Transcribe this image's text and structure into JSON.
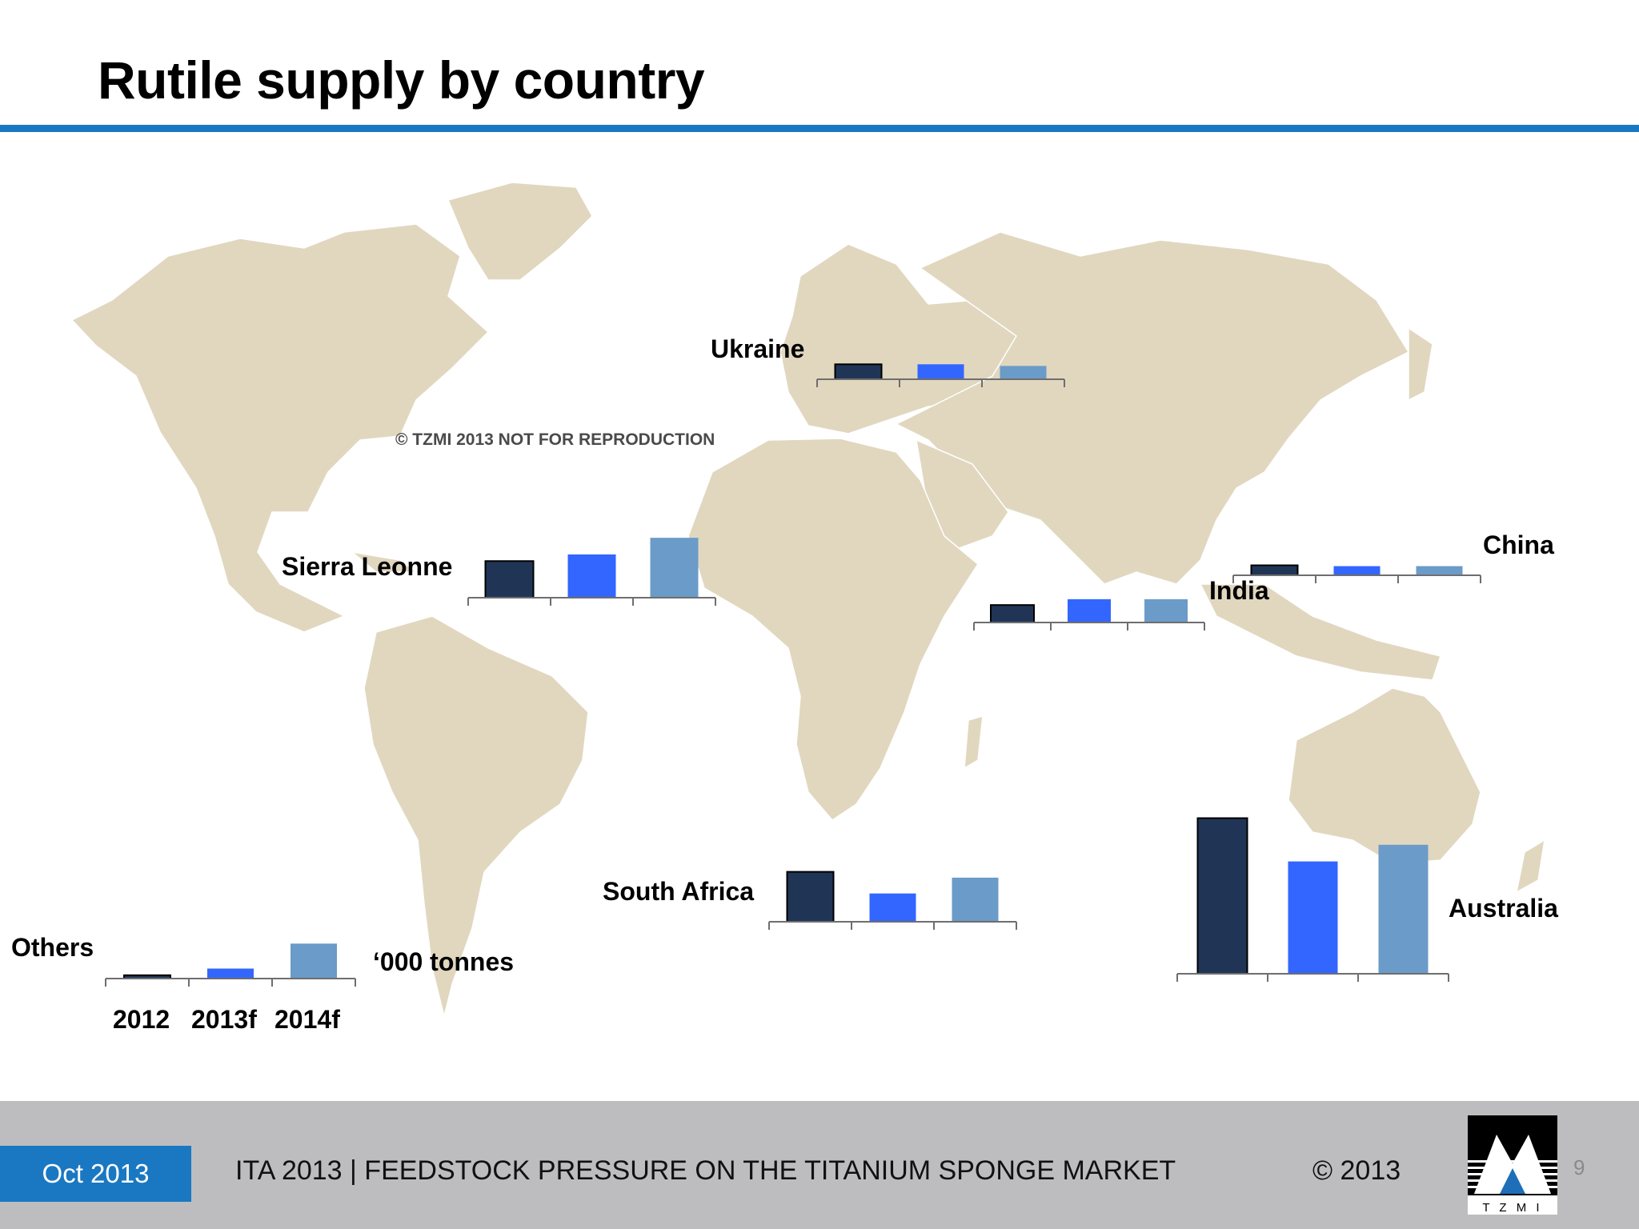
{
  "slide": {
    "title": "Rutile supply by country",
    "watermark": "© TZMI 2013 NOT FOR REPRODUCTION",
    "unit_label": "‘000 tonnes"
  },
  "footer": {
    "date": "Oct 2013",
    "conference": "ITA 2013 | FEEDSTOCK PRESSURE ON THE TITANIUM SPONGE MARKET",
    "copyright": "© 2013",
    "logo_text": "T Z M I",
    "page_number": "9"
  },
  "colors": {
    "bar_2012": "#203556",
    "bar_2013f": "#3366ff",
    "bar_2014f": "#6b9bc8",
    "land": "#e1d7bf",
    "accent": "#1a78c2"
  },
  "chart_data": [
    {
      "type": "bar",
      "country": "Ukraine",
      "categories": [
        "2012",
        "2013f",
        "2014f"
      ],
      "values": [
        18,
        18,
        16
      ],
      "ylim": [
        0,
        200
      ]
    },
    {
      "type": "bar",
      "country": "Sierra Leonne",
      "categories": [
        "2012",
        "2013f",
        "2014f"
      ],
      "values": [
        44,
        52,
        72
      ],
      "ylim": [
        0,
        200
      ]
    },
    {
      "type": "bar",
      "country": "India",
      "categories": [
        "2012",
        "2013f",
        "2014f"
      ],
      "values": [
        21,
        28,
        28
      ],
      "ylim": [
        0,
        200
      ]
    },
    {
      "type": "bar",
      "country": "China",
      "categories": [
        "2012",
        "2013f",
        "2014f"
      ],
      "values": [
        12,
        11,
        11
      ],
      "ylim": [
        0,
        200
      ]
    },
    {
      "type": "bar",
      "country": "South Africa",
      "categories": [
        "2012",
        "2013f",
        "2014f"
      ],
      "values": [
        60,
        34,
        53
      ],
      "ylim": [
        0,
        200
      ]
    },
    {
      "type": "bar",
      "country": "Australia",
      "categories": [
        "2012",
        "2013f",
        "2014f"
      ],
      "values": [
        187,
        135,
        155
      ],
      "ylim": [
        0,
        200
      ]
    },
    {
      "type": "bar",
      "country": "Others",
      "categories": [
        "2012",
        "2013f",
        "2014f"
      ],
      "values": [
        4,
        12,
        42
      ],
      "ylim": [
        0,
        200
      ]
    }
  ]
}
